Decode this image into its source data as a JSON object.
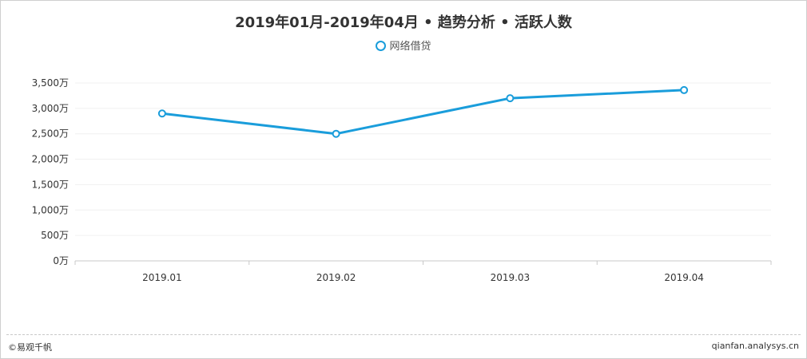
{
  "colors": {
    "line": "#1a9ddb",
    "axis": "#c8c8c8",
    "grid": "#f0f0f0",
    "text": "#333333"
  },
  "chart_data": {
    "type": "line",
    "title": "2019年01月-2019年04月 • 趋势分析 • 活跃人数",
    "categories": [
      "2019.01",
      "2019.02",
      "2019.03",
      "2019.04"
    ],
    "series": [
      {
        "name": "网络借贷",
        "values": [
          2900,
          2500,
          3200,
          3360
        ]
      }
    ],
    "ylim": [
      0,
      3500
    ],
    "y_ticks": [
      0,
      500,
      1000,
      1500,
      2000,
      2500,
      3000,
      3500
    ],
    "y_tick_labels": [
      "0万",
      "500万",
      "1,000万",
      "1,500万",
      "2,000万",
      "2,500万",
      "3,000万",
      "3,500万"
    ],
    "grid": true,
    "legend": "top-center"
  },
  "footer": {
    "copyright": "©易观千帆",
    "source": "qianfan.analysys.cn"
  }
}
